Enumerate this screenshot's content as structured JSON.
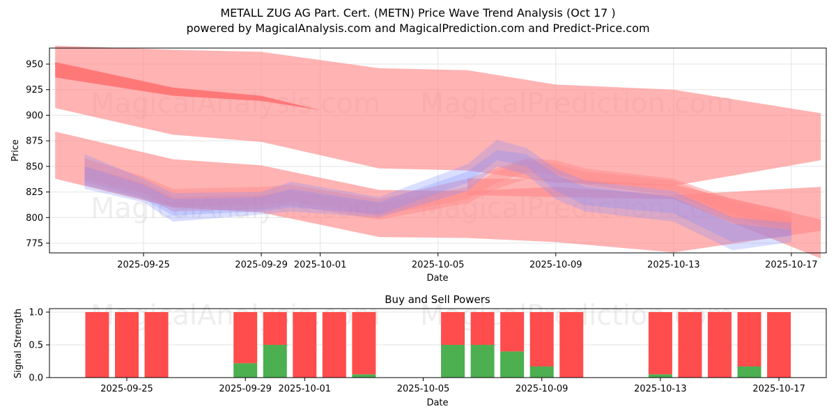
{
  "title": "METALL ZUG AG Part. Cert. (METN) Price Wave Trend Analysis (Oct 17 )",
  "subtitle": "powered by MagicalAnalysis.com and MagicalPrediction.com and Predict-Price.com",
  "watermarks": [
    "MagicalAnalysis.com",
    "MagicalPrediction.com"
  ],
  "colors": {
    "band": "#ff8080",
    "band_dark": "#ff5a5a",
    "blue_band": "#8080ff",
    "buy": "#4caf50",
    "sell": "#ff4c4c",
    "grid": "#e0e0e0"
  },
  "chart_data": [
    {
      "type": "area",
      "title": "",
      "xlabel": "Date",
      "ylabel": "Price",
      "ylim": [
        765,
        965
      ],
      "xlim": [
        "2025-09-21T12:00",
        "2025-10-18T12:00"
      ],
      "grid": true,
      "yticks": [
        775,
        800,
        825,
        850,
        875,
        900,
        925,
        950
      ],
      "xticks": [
        "2025-09-25",
        "2025-09-29",
        "2025-10-01",
        "2025-10-05",
        "2025-10-09",
        "2025-10-13",
        "2025-10-17"
      ],
      "series": [
        {
          "name": "upper-wave-band",
          "color": "red",
          "x": [
            "2025-09-22",
            "2025-09-26",
            "2025-09-29",
            "2025-10-03",
            "2025-10-06",
            "2025-10-09",
            "2025-10-13",
            "2025-10-18"
          ],
          "upper": [
            968,
            964,
            962,
            946,
            944,
            930,
            925,
            902
          ],
          "lower": [
            907,
            881,
            874,
            848,
            846,
            834,
            831,
            856
          ]
        },
        {
          "name": "upper-wave-core",
          "color": "darkred",
          "x": [
            "2025-09-22",
            "2025-09-26",
            "2025-09-29",
            "2025-10-01"
          ],
          "upper": [
            952,
            927,
            919,
            905
          ],
          "lower": [
            937,
            919,
            914,
            905
          ]
        },
        {
          "name": "mid-wave-band",
          "color": "red",
          "x": [
            "2025-09-22",
            "2025-09-26",
            "2025-09-29",
            "2025-10-03",
            "2025-10-06",
            "2025-10-09",
            "2025-10-13",
            "2025-10-18"
          ],
          "upper": [
            884,
            857,
            851,
            827,
            826,
            830,
            822,
            830
          ],
          "lower": [
            838,
            810,
            805,
            781,
            780,
            776,
            766,
            787
          ]
        },
        {
          "name": "lower-wave-band",
          "color": "red",
          "x": [
            "2025-10-06",
            "2025-10-09",
            "2025-10-13",
            "2025-10-18"
          ],
          "upper": [
            838,
            838,
            832,
            798
          ],
          "lower": [
            822,
            820,
            818,
            760
          ]
        },
        {
          "name": "price-wave-red-1",
          "color": "red",
          "x": [
            "2025-09-23",
            "2025-09-25",
            "2025-09-26",
            "2025-09-29",
            "2025-09-30",
            "2025-10-03",
            "2025-10-06",
            "2025-10-07",
            "2025-10-08",
            "2025-10-09",
            "2025-10-10",
            "2025-10-13",
            "2025-10-15",
            "2025-10-17"
          ],
          "upper": [
            858,
            840,
            828,
            830,
            832,
            818,
            838,
            848,
            858,
            856,
            848,
            838,
            818,
            806
          ],
          "lower": [
            835,
            820,
            806,
            808,
            812,
            798,
            814,
            828,
            838,
            838,
            832,
            822,
            800,
            784
          ]
        },
        {
          "name": "price-wave-red-2",
          "color": "red",
          "x": [
            "2025-09-23",
            "2025-09-25",
            "2025-09-26",
            "2025-09-29",
            "2025-09-30",
            "2025-10-03",
            "2025-10-06",
            "2025-10-07",
            "2025-10-08",
            "2025-10-09",
            "2025-10-10",
            "2025-10-13",
            "2025-10-15",
            "2025-10-17"
          ],
          "upper": [
            850,
            834,
            820,
            822,
            826,
            814,
            830,
            845,
            856,
            852,
            845,
            836,
            815,
            800
          ],
          "lower": [
            838,
            824,
            810,
            812,
            816,
            802,
            818,
            834,
            844,
            842,
            836,
            826,
            804,
            788
          ]
        },
        {
          "name": "price-wave-blue-1",
          "color": "blue",
          "x": [
            "2025-09-23",
            "2025-09-25",
            "2025-09-26",
            "2025-09-29",
            "2025-09-30",
            "2025-10-03",
            "2025-10-06",
            "2025-10-07",
            "2025-10-08",
            "2025-10-09",
            "2025-10-10",
            "2025-10-13",
            "2025-10-15",
            "2025-10-17"
          ],
          "upper": [
            862,
            838,
            824,
            825,
            835,
            820,
            852,
            876,
            868,
            848,
            836,
            826,
            800,
            795
          ],
          "lower": [
            828,
            815,
            796,
            803,
            806,
            800,
            826,
            850,
            842,
            818,
            806,
            796,
            768,
            776
          ]
        },
        {
          "name": "price-wave-blue-2",
          "color": "blue",
          "x": [
            "2025-09-23",
            "2025-09-25",
            "2025-09-26",
            "2025-09-29",
            "2025-09-30",
            "2025-10-03",
            "2025-10-06",
            "2025-10-07",
            "2025-10-08",
            "2025-10-09",
            "2025-10-10",
            "2025-10-13",
            "2025-10-15",
            "2025-10-17"
          ],
          "upper": [
            850,
            832,
            818,
            820,
            828,
            815,
            845,
            866,
            862,
            842,
            830,
            820,
            794,
            788
          ],
          "lower": [
            832,
            818,
            802,
            806,
            810,
            803,
            834,
            856,
            850,
            826,
            812,
            804,
            776,
            782
          ]
        }
      ]
    },
    {
      "type": "bar",
      "title": "Buy and Sell Powers",
      "xlabel": "Date",
      "ylabel": "Signal Strength",
      "ylim": [
        0,
        1.05
      ],
      "yticks": [
        "0.0",
        "0.5",
        "1.0"
      ],
      "xticks": [
        "2025-09-25",
        "2025-09-29",
        "2025-10-01",
        "2025-10-05",
        "2025-10-09",
        "2025-10-13",
        "2025-10-17"
      ],
      "grid": true,
      "categories": [
        "2025-09-24",
        "2025-09-25",
        "2025-09-26",
        "2025-09-29",
        "2025-09-30",
        "2025-10-01",
        "2025-10-02",
        "2025-10-03",
        "2025-10-06",
        "2025-10-07",
        "2025-10-08",
        "2025-10-09",
        "2025-10-10",
        "2025-10-13",
        "2025-10-14",
        "2025-10-15",
        "2025-10-16",
        "2025-10-17"
      ],
      "series": [
        {
          "name": "Buy",
          "color": "green",
          "values": [
            0,
            0,
            0,
            0.22,
            0.5,
            0,
            0,
            0.05,
            0.5,
            0.5,
            0.4,
            0.17,
            0,
            0.05,
            0,
            0,
            0.17,
            0
          ]
        },
        {
          "name": "Sell",
          "color": "red",
          "values": [
            1,
            1,
            1,
            0.78,
            0.5,
            1,
            1,
            0.95,
            0.5,
            0.5,
            0.6,
            0.83,
            1,
            0.95,
            1,
            1,
            0.83,
            1
          ]
        }
      ]
    }
  ]
}
